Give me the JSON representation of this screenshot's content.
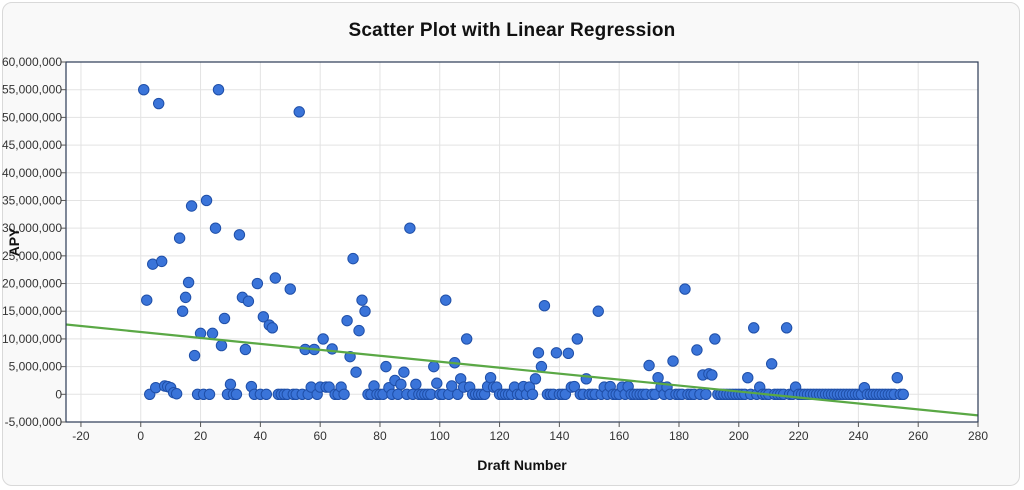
{
  "chart_data": {
    "type": "scatter",
    "title": "Scatter Plot with Linear Regression",
    "xlabel": "Draft Number",
    "ylabel": "APY",
    "xlim": [
      -25,
      280
    ],
    "ylim": [
      -5000000,
      60000000
    ],
    "x_ticks": [
      -20,
      0,
      20,
      40,
      60,
      80,
      100,
      120,
      140,
      160,
      180,
      200,
      220,
      240,
      260,
      280
    ],
    "y_ticks": [
      -5000000,
      0,
      5000000,
      10000000,
      15000000,
      20000000,
      25000000,
      30000000,
      35000000,
      40000000,
      45000000,
      50000000,
      55000000,
      60000000
    ],
    "y_tick_labels": [
      "-5,000,000",
      "0",
      "5,000,000",
      "10,000,000",
      "15,000,000",
      "20,000,000",
      "25,000,000",
      "30,000,000",
      "35,000,000",
      "40,000,000",
      "45,000,000",
      "50,000,000",
      "55,000,000",
      "60,000,000"
    ],
    "grid": true,
    "colors": {
      "points": "#3a74d9",
      "point_edge": "#1f4fa8",
      "regression": "#5aa845",
      "frame": "#2b3a55",
      "grid": "#e3e3e3"
    },
    "regression": {
      "x": [
        -25,
        280
      ],
      "y": [
        12600000,
        -3800000
      ]
    },
    "points": [
      [
        1,
        55000000
      ],
      [
        2,
        17000000
      ],
      [
        3,
        0
      ],
      [
        4,
        23500000
      ],
      [
        5,
        1200000
      ],
      [
        6,
        52500000
      ],
      [
        7,
        24000000
      ],
      [
        8,
        1500000
      ],
      [
        9,
        1400000
      ],
      [
        10,
        1200000
      ],
      [
        11,
        300000
      ],
      [
        12,
        100000
      ],
      [
        13,
        28200000
      ],
      [
        14,
        15000000
      ],
      [
        15,
        17500000
      ],
      [
        16,
        20200000
      ],
      [
        17,
        34000000
      ],
      [
        18,
        7000000
      ],
      [
        19,
        0
      ],
      [
        20,
        11000000
      ],
      [
        21,
        0
      ],
      [
        22,
        35000000
      ],
      [
        23,
        0
      ],
      [
        24,
        11000000
      ],
      [
        25,
        30000000
      ],
      [
        26,
        55000000
      ],
      [
        27,
        8800000
      ],
      [
        28,
        13700000
      ],
      [
        29,
        0
      ],
      [
        30,
        1800000
      ],
      [
        31,
        0
      ],
      [
        32,
        0
      ],
      [
        33,
        28800000
      ],
      [
        34,
        17500000
      ],
      [
        35,
        8100000
      ],
      [
        36,
        16800000
      ],
      [
        37,
        1400000
      ],
      [
        38,
        0
      ],
      [
        39,
        20000000
      ],
      [
        40,
        0
      ],
      [
        41,
        14000000
      ],
      [
        42,
        0
      ],
      [
        43,
        12500000
      ],
      [
        44,
        12000000
      ],
      [
        45,
        21000000
      ],
      [
        46,
        0
      ],
      [
        47,
        0
      ],
      [
        48,
        0
      ],
      [
        49,
        0
      ],
      [
        50,
        19000000
      ],
      [
        51,
        0
      ],
      [
        52,
        0
      ],
      [
        53,
        51000000
      ],
      [
        54,
        0
      ],
      [
        55,
        8100000
      ],
      [
        56,
        0
      ],
      [
        57,
        1300000
      ],
      [
        58,
        8100000
      ],
      [
        59,
        0
      ],
      [
        60,
        1300000
      ],
      [
        61,
        10000000
      ],
      [
        62,
        1300000
      ],
      [
        63,
        1300000
      ],
      [
        64,
        8200000
      ],
      [
        65,
        0
      ],
      [
        66,
        0
      ],
      [
        67,
        1300000
      ],
      [
        68,
        0
      ],
      [
        69,
        13300000
      ],
      [
        70,
        6800000
      ],
      [
        71,
        24500000
      ],
      [
        72,
        4000000
      ],
      [
        73,
        11500000
      ],
      [
        74,
        17000000
      ],
      [
        75,
        15000000
      ],
      [
        76,
        0
      ],
      [
        77,
        0
      ],
      [
        78,
        1500000
      ],
      [
        79,
        0
      ],
      [
        80,
        0
      ],
      [
        81,
        0
      ],
      [
        82,
        5000000
      ],
      [
        83,
        1200000
      ],
      [
        84,
        0
      ],
      [
        85,
        2500000
      ],
      [
        86,
        0
      ],
      [
        87,
        1800000
      ],
      [
        88,
        4000000
      ],
      [
        89,
        0
      ],
      [
        90,
        30000000
      ],
      [
        91,
        0
      ],
      [
        92,
        1800000
      ],
      [
        93,
        0
      ],
      [
        94,
        0
      ],
      [
        95,
        0
      ],
      [
        96,
        0
      ],
      [
        97,
        0
      ],
      [
        98,
        5000000
      ],
      [
        99,
        2000000
      ],
      [
        100,
        0
      ],
      [
        101,
        0
      ],
      [
        102,
        17000000
      ],
      [
        103,
        0
      ],
      [
        104,
        1500000
      ],
      [
        105,
        5700000
      ],
      [
        106,
        0
      ],
      [
        107,
        2800000
      ],
      [
        108,
        1300000
      ],
      [
        109,
        10000000
      ],
      [
        110,
        1300000
      ],
      [
        111,
        0
      ],
      [
        112,
        0
      ],
      [
        113,
        0
      ],
      [
        114,
        0
      ],
      [
        115,
        0
      ],
      [
        116,
        1400000
      ],
      [
        117,
        3000000
      ],
      [
        118,
        1300000
      ],
      [
        119,
        1300000
      ],
      [
        120,
        0
      ],
      [
        121,
        0
      ],
      [
        122,
        0
      ],
      [
        123,
        0
      ],
      [
        124,
        0
      ],
      [
        125,
        1300000
      ],
      [
        126,
        0
      ],
      [
        127,
        0
      ],
      [
        128,
        1400000
      ],
      [
        129,
        0
      ],
      [
        130,
        1300000
      ],
      [
        131,
        0
      ],
      [
        132,
        2800000
      ],
      [
        133,
        7500000
      ],
      [
        134,
        5000000
      ],
      [
        135,
        16000000
      ],
      [
        136,
        0
      ],
      [
        137,
        0
      ],
      [
        138,
        0
      ],
      [
        139,
        7500000
      ],
      [
        140,
        0
      ],
      [
        141,
        0
      ],
      [
        142,
        0
      ],
      [
        143,
        7400000
      ],
      [
        144,
        1300000
      ],
      [
        145,
        1400000
      ],
      [
        146,
        10000000
      ],
      [
        147,
        0
      ],
      [
        148,
        0
      ],
      [
        149,
        2800000
      ],
      [
        150,
        0
      ],
      [
        151,
        0
      ],
      [
        152,
        0
      ],
      [
        153,
        15000000
      ],
      [
        154,
        0
      ],
      [
        155,
        1300000
      ],
      [
        156,
        0
      ],
      [
        157,
        1400000
      ],
      [
        158,
        0
      ],
      [
        159,
        0
      ],
      [
        160,
        0
      ],
      [
        161,
        1300000
      ],
      [
        162,
        0
      ],
      [
        163,
        1400000
      ],
      [
        164,
        0
      ],
      [
        165,
        0
      ],
      [
        166,
        0
      ],
      [
        167,
        0
      ],
      [
        168,
        0
      ],
      [
        169,
        0
      ],
      [
        170,
        5200000
      ],
      [
        171,
        0
      ],
      [
        172,
        0
      ],
      [
        173,
        3000000
      ],
      [
        174,
        1300000
      ],
      [
        175,
        0
      ],
      [
        176,
        1300000
      ],
      [
        177,
        0
      ],
      [
        178,
        6000000
      ],
      [
        179,
        0
      ],
      [
        180,
        0
      ],
      [
        181,
        0
      ],
      [
        182,
        19000000
      ],
      [
        183,
        0
      ],
      [
        184,
        0
      ],
      [
        185,
        0
      ],
      [
        186,
        8000000
      ],
      [
        187,
        0
      ],
      [
        188,
        3500000
      ],
      [
        189,
        0
      ],
      [
        190,
        3700000
      ],
      [
        191,
        3500000
      ],
      [
        192,
        10000000
      ],
      [
        193,
        0
      ],
      [
        194,
        0
      ],
      [
        195,
        0
      ],
      [
        196,
        0
      ],
      [
        197,
        0
      ],
      [
        198,
        0
      ],
      [
        199,
        0
      ],
      [
        200,
        0
      ],
      [
        201,
        0
      ],
      [
        202,
        0
      ],
      [
        203,
        3000000
      ],
      [
        204,
        0
      ],
      [
        205,
        12000000
      ],
      [
        206,
        0
      ],
      [
        207,
        1300000
      ],
      [
        208,
        0
      ],
      [
        209,
        0
      ],
      [
        210,
        0
      ],
      [
        211,
        5500000
      ],
      [
        212,
        0
      ],
      [
        213,
        0
      ],
      [
        214,
        0
      ],
      [
        215,
        0
      ],
      [
        216,
        12000000
      ],
      [
        217,
        0
      ],
      [
        218,
        0
      ],
      [
        219,
        1300000
      ],
      [
        220,
        0
      ],
      [
        221,
        0
      ],
      [
        222,
        0
      ],
      [
        223,
        0
      ],
      [
        224,
        0
      ],
      [
        225,
        0
      ],
      [
        226,
        0
      ],
      [
        227,
        0
      ],
      [
        228,
        0
      ],
      [
        229,
        0
      ],
      [
        230,
        0
      ],
      [
        231,
        0
      ],
      [
        232,
        0
      ],
      [
        233,
        0
      ],
      [
        234,
        0
      ],
      [
        235,
        0
      ],
      [
        236,
        0
      ],
      [
        237,
        0
      ],
      [
        238,
        0
      ],
      [
        239,
        0
      ],
      [
        240,
        0
      ],
      [
        241,
        0
      ],
      [
        242,
        1200000
      ],
      [
        243,
        0
      ],
      [
        244,
        0
      ],
      [
        245,
        0
      ],
      [
        246,
        0
      ],
      [
        247,
        0
      ],
      [
        248,
        0
      ],
      [
        249,
        0
      ],
      [
        250,
        0
      ],
      [
        251,
        0
      ],
      [
        252,
        0
      ],
      [
        253,
        3000000
      ],
      [
        254,
        0
      ],
      [
        255,
        0
      ]
    ]
  }
}
